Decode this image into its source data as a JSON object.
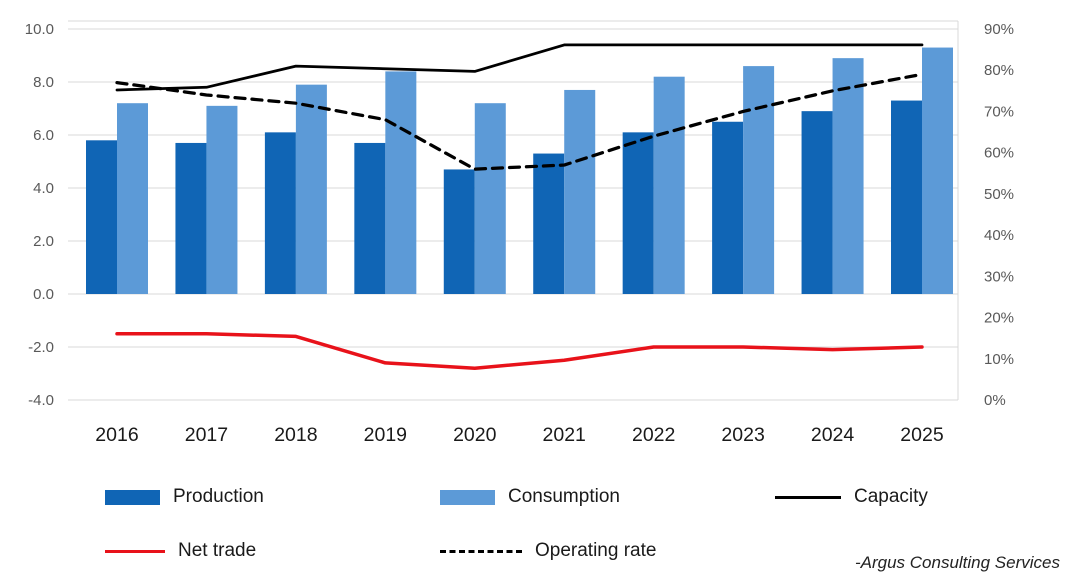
{
  "chart_data": {
    "type": "combo",
    "categories": [
      "2016",
      "2017",
      "2018",
      "2019",
      "2020",
      "2021",
      "2022",
      "2023",
      "2024",
      "2025"
    ],
    "series": [
      {
        "name": "Production",
        "type": "bar",
        "axis": "left",
        "color": "#1065b5",
        "values": [
          5.8,
          5.7,
          6.1,
          5.7,
          4.7,
          5.3,
          6.1,
          6.5,
          6.9,
          7.3
        ]
      },
      {
        "name": "Consumption",
        "type": "bar",
        "axis": "left",
        "color": "#5c9ad7",
        "values": [
          7.2,
          7.1,
          7.9,
          8.4,
          7.2,
          7.7,
          8.2,
          8.6,
          8.9,
          9.3
        ]
      },
      {
        "name": "Capacity",
        "type": "line",
        "line_style": "solid",
        "axis": "left",
        "color": "#000000",
        "values": [
          7.7,
          7.8,
          8.6,
          8.5,
          8.4,
          9.4,
          9.4,
          9.4,
          9.4,
          9.4
        ]
      },
      {
        "name": "Net trade",
        "type": "line",
        "line_style": "solid",
        "axis": "left",
        "color": "#e8121a",
        "values": [
          -1.5,
          -1.5,
          -1.6,
          -2.6,
          -2.8,
          -2.5,
          -2.0,
          -2.0,
          -2.1,
          -2.0
        ]
      },
      {
        "name": "Operating rate",
        "type": "line",
        "line_style": "dashed",
        "axis": "right",
        "color": "#000000",
        "unit": "%",
        "values": [
          77,
          74,
          72,
          68,
          56,
          57,
          64,
          70,
          75,
          79
        ]
      }
    ],
    "left_axis": {
      "ticks": [
        "10.0",
        "8.0",
        "6.0",
        "4.0",
        "2.0",
        "0.0",
        "-2.0",
        "-4.0"
      ],
      "min": -4,
      "max": 10,
      "step": 2
    },
    "right_axis": {
      "ticks": [
        "90%",
        "80%",
        "70%",
        "60%",
        "50%",
        "40%",
        "30%",
        "20%",
        "10%",
        "0%"
      ],
      "min": 0,
      "max": 90,
      "step": 10
    },
    "grid": true,
    "legend_position": "bottom",
    "colors": {
      "gridline": "#d9d9d9",
      "axis_tick_text": "#595959",
      "category_text": "#1a1a1a"
    }
  },
  "attribution": "-Argus Consulting Services"
}
